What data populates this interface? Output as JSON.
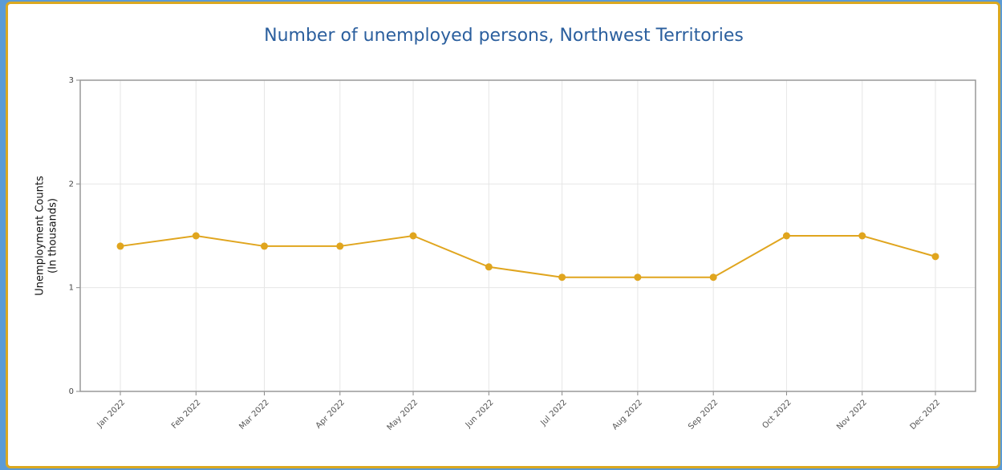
{
  "chart_data": {
    "type": "line",
    "title": "Number of unemployed persons, Northwest Territories",
    "y_label": [
      "Unemployment Counts",
      "(In thousands)"
    ],
    "x": [
      "2022-01",
      "2022-02",
      "2022-03",
      "2022-04",
      "2022-05",
      "2022-06",
      "2022-07",
      "2022-08",
      "2022-09",
      "2022-10",
      "2022-11",
      "2022-12"
    ],
    "xticks": [
      {
        "value": "2022-01",
        "label": "Jan 2022"
      },
      {
        "value": "2022-02",
        "label": "Feb 2022"
      },
      {
        "value": "2022-03",
        "label": "Mar 2022"
      },
      {
        "value": "2022-04",
        "label": "Apr 2022"
      },
      {
        "value": "2022-05",
        "label": "May 2022"
      },
      {
        "value": "2022-06",
        "label": "Jun 2022"
      },
      {
        "value": "2022-07",
        "label": "Jul 2022"
      },
      {
        "value": "2022-08",
        "label": "Aug 2022"
      },
      {
        "value": "2022-09",
        "label": "Sep 2022"
      },
      {
        "value": "2022-10",
        "label": "Oct 2022"
      },
      {
        "value": "2022-11",
        "label": "Nov 2022"
      },
      {
        "value": "2022-12",
        "label": "Dec 2022"
      }
    ],
    "series": [
      {
        "color": "#e0a51e",
        "values": [
          1.4,
          1.5,
          1.4,
          1.4,
          1.5,
          1.2,
          1.1,
          1.1,
          1.1,
          1.5,
          1.5,
          1.3
        ]
      }
    ],
    "ylim": [
      0,
      3
    ],
    "yticks": [
      0,
      1,
      2,
      3
    ],
    "grid": true
  }
}
